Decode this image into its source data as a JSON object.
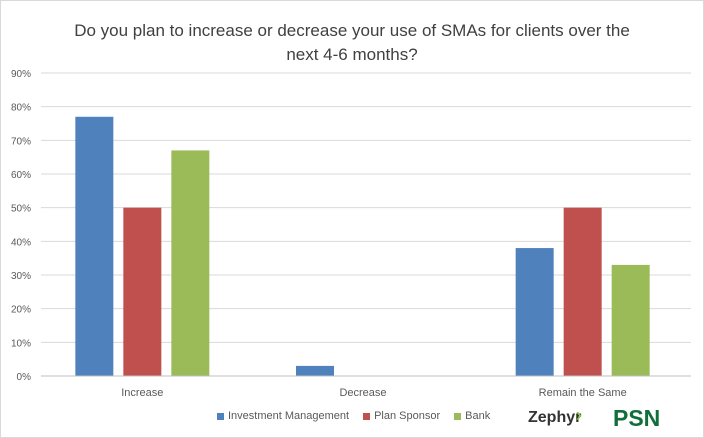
{
  "chart_data": {
    "type": "bar",
    "title": "Do you plan to increase or decrease your use of SMAs for clients over the next 4-6 months?",
    "title_lines": [
      "Do you plan to increase or decrease your use of SMAs for clients over the",
      "next 4-6 months?"
    ],
    "categories": [
      "Increase",
      "Decrease",
      "Remain the Same"
    ],
    "series": [
      {
        "name": "Investment Management",
        "color": "#4f81bd",
        "values": [
          77,
          3,
          38
        ]
      },
      {
        "name": "Plan Sponsor",
        "color": "#c0504d",
        "values": [
          50,
          0,
          50
        ]
      },
      {
        "name": "Bank",
        "color": "#9bbb59",
        "values": [
          67,
          0,
          33
        ]
      }
    ],
    "ylim": [
      0,
      90
    ],
    "yticks": [
      "0%",
      "10%",
      "20%",
      "30%",
      "40%",
      "50%",
      "60%",
      "70%",
      "80%",
      "90%"
    ],
    "grid": true,
    "legend": "bottom",
    "xlabel": "",
    "ylabel": ""
  },
  "logos": {
    "zephyr": "Zephyr",
    "psn": "PSN"
  }
}
